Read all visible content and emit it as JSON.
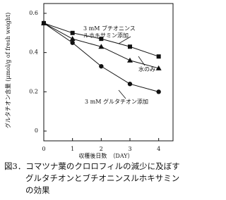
{
  "chart_data": {
    "type": "line",
    "x_label": "収穫後日数　（DAY）",
    "y_label": "グルタチオン含量 (μmol/g of fresh weight)",
    "x": [
      0,
      1,
      2,
      3,
      4
    ],
    "series": [
      {
        "name": "3 mM ブチオニンスルホキサミン添加",
        "color": "#111111",
        "marker": "square",
        "values": [
          0.55,
          0.5,
          0.47,
          0.43,
          0.38
        ]
      },
      {
        "name": "水のみ",
        "color": "#111111",
        "marker": "triangle",
        "values": [
          0.55,
          0.47,
          0.43,
          0.36,
          0.32
        ]
      },
      {
        "name": "3 mM グルタチオン添加",
        "color": "#111111",
        "marker": "circle",
        "values": [
          0.55,
          0.45,
          0.33,
          0.24,
          0.2
        ]
      }
    ],
    "xlim": [
      0,
      4.5
    ],
    "xticks": [
      0,
      1,
      2,
      3,
      4
    ],
    "ylim": [
      -0.05,
      0.65
    ],
    "yticks": [
      0,
      0.2,
      0.4,
      0.6
    ],
    "caption": [
      "図3．コマツナ葉のクロロフィルの減少に及ぼす",
      "グルタチオンとブチオニンスルホキサミン",
      "の効果"
    ]
  }
}
